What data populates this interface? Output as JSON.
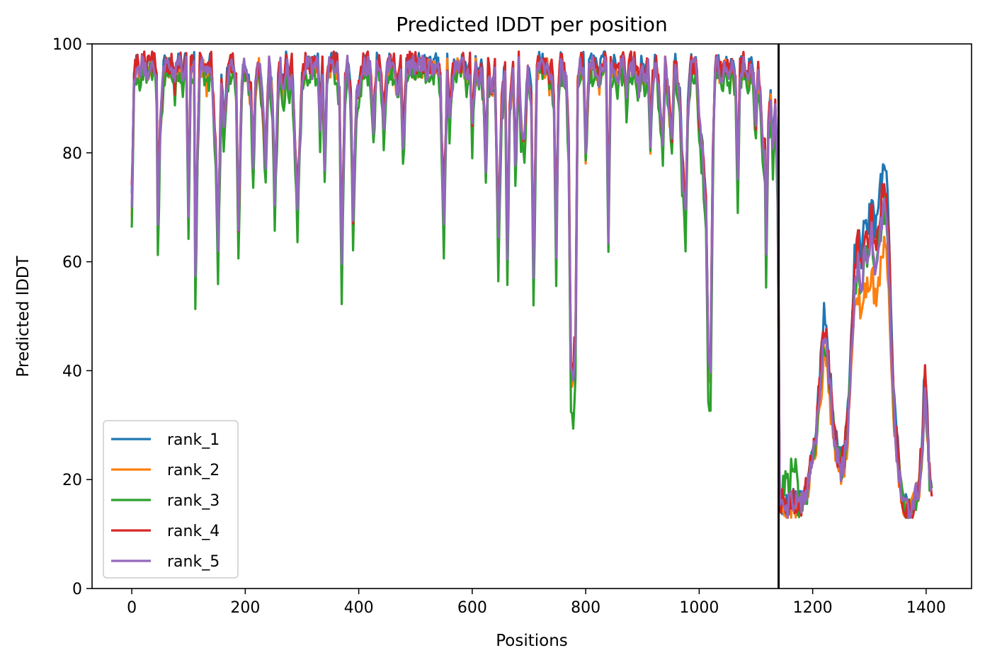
{
  "chart_data": {
    "type": "line",
    "title": "Predicted lDDT per position",
    "xlabel": "Positions",
    "ylabel": "Predicted lDDT",
    "xlim": [
      -70,
      1480
    ],
    "ylim": [
      0,
      100
    ],
    "xticks": [
      0,
      200,
      400,
      600,
      800,
      1000,
      1200,
      1400
    ],
    "yticks": [
      0,
      20,
      40,
      60,
      80,
      100
    ],
    "vline_x": 1140,
    "grid": false,
    "legend_position": "lower-left",
    "seed_points": [
      [
        0,
        71
      ],
      [
        4,
        93
      ],
      [
        8,
        97
      ],
      [
        14,
        94
      ],
      [
        20,
        97
      ],
      [
        28,
        95
      ],
      [
        34,
        98
      ],
      [
        40,
        96
      ],
      [
        44,
        92
      ],
      [
        46,
        65
      ],
      [
        50,
        85
      ],
      [
        56,
        95
      ],
      [
        62,
        97
      ],
      [
        70,
        97
      ],
      [
        76,
        92
      ],
      [
        80,
        97
      ],
      [
        86,
        97
      ],
      [
        90,
        93
      ],
      [
        96,
        97
      ],
      [
        100,
        70
      ],
      [
        104,
        95
      ],
      [
        110,
        96
      ],
      [
        112,
        58
      ],
      [
        116,
        80
      ],
      [
        120,
        97
      ],
      [
        126,
        96
      ],
      [
        132,
        93
      ],
      [
        140,
        97
      ],
      [
        148,
        80
      ],
      [
        152,
        63
      ],
      [
        158,
        93
      ],
      [
        162,
        84
      ],
      [
        168,
        93
      ],
      [
        174,
        97
      ],
      [
        180,
        97
      ],
      [
        184,
        92
      ],
      [
        188,
        65
      ],
      [
        194,
        93
      ],
      [
        200,
        97
      ],
      [
        206,
        92
      ],
      [
        210,
        90
      ],
      [
        214,
        78
      ],
      [
        218,
        92
      ],
      [
        224,
        97
      ],
      [
        230,
        90
      ],
      [
        236,
        78
      ],
      [
        242,
        96
      ],
      [
        248,
        90
      ],
      [
        252,
        72
      ],
      [
        258,
        92
      ],
      [
        262,
        96
      ],
      [
        268,
        90
      ],
      [
        272,
        97
      ],
      [
        278,
        92
      ],
      [
        282,
        96
      ],
      [
        286,
        86
      ],
      [
        292,
        70
      ],
      [
        300,
        93
      ],
      [
        306,
        96
      ],
      [
        312,
        97
      ],
      [
        318,
        95
      ],
      [
        322,
        98
      ],
      [
        328,
        97
      ],
      [
        332,
        85
      ],
      [
        336,
        95
      ],
      [
        340,
        78
      ],
      [
        344,
        93
      ],
      [
        350,
        97
      ],
      [
        356,
        97
      ],
      [
        362,
        96
      ],
      [
        366,
        90
      ],
      [
        370,
        60
      ],
      [
        376,
        92
      ],
      [
        380,
        97
      ],
      [
        386,
        90
      ],
      [
        390,
        67
      ],
      [
        396,
        90
      ],
      [
        402,
        93
      ],
      [
        408,
        96
      ],
      [
        414,
        97
      ],
      [
        420,
        95
      ],
      [
        426,
        85
      ],
      [
        432,
        97
      ],
      [
        438,
        97
      ],
      [
        444,
        85
      ],
      [
        450,
        95
      ],
      [
        456,
        97
      ],
      [
        462,
        96
      ],
      [
        468,
        92
      ],
      [
        474,
        96
      ],
      [
        478,
        80
      ],
      [
        484,
        95
      ],
      [
        490,
        97
      ],
      [
        496,
        96
      ],
      [
        502,
        98
      ],
      [
        508,
        97
      ],
      [
        514,
        96
      ],
      [
        520,
        95
      ],
      [
        526,
        97
      ],
      [
        532,
        96
      ],
      [
        538,
        96
      ],
      [
        544,
        93
      ],
      [
        550,
        66
      ],
      [
        556,
        96
      ],
      [
        560,
        85
      ],
      [
        566,
        95
      ],
      [
        572,
        97
      ],
      [
        578,
        96
      ],
      [
        584,
        97
      ],
      [
        590,
        93
      ],
      [
        596,
        96
      ],
      [
        600,
        84
      ],
      [
        606,
        96
      ],
      [
        612,
        93
      ],
      [
        616,
        96
      ],
      [
        620,
        90
      ],
      [
        624,
        78
      ],
      [
        628,
        95
      ],
      [
        634,
        91
      ],
      [
        640,
        95
      ],
      [
        646,
        64
      ],
      [
        652,
        88
      ],
      [
        658,
        96
      ],
      [
        662,
        60
      ],
      [
        666,
        88
      ],
      [
        672,
        95
      ],
      [
        676,
        78
      ],
      [
        682,
        96
      ],
      [
        686,
        85
      ],
      [
        692,
        82
      ],
      [
        698,
        95
      ],
      [
        704,
        90
      ],
      [
        708,
        57
      ],
      [
        714,
        95
      ],
      [
        720,
        97
      ],
      [
        726,
        98
      ],
      [
        732,
        97
      ],
      [
        736,
        93
      ],
      [
        740,
        96
      ],
      [
        744,
        90
      ],
      [
        748,
        62
      ],
      [
        752,
        90
      ],
      [
        756,
        97
      ],
      [
        762,
        94
      ],
      [
        766,
        93
      ],
      [
        770,
        80
      ],
      [
        774,
        39
      ],
      [
        778,
        38
      ],
      [
        782,
        45
      ],
      [
        786,
        93
      ],
      [
        790,
        98
      ],
      [
        796,
        97
      ],
      [
        800,
        80
      ],
      [
        806,
        95
      ],
      [
        812,
        97
      ],
      [
        818,
        97
      ],
      [
        824,
        93
      ],
      [
        830,
        98
      ],
      [
        836,
        96
      ],
      [
        840,
        65
      ],
      [
        844,
        95
      ],
      [
        850,
        97
      ],
      [
        856,
        93
      ],
      [
        862,
        96
      ],
      [
        868,
        96
      ],
      [
        872,
        90
      ],
      [
        876,
        96
      ],
      [
        882,
        97
      ],
      [
        888,
        96
      ],
      [
        894,
        92
      ],
      [
        898,
        96
      ],
      [
        904,
        93
      ],
      [
        910,
        96
      ],
      [
        914,
        82
      ],
      [
        918,
        93
      ],
      [
        924,
        97
      ],
      [
        930,
        90
      ],
      [
        936,
        82
      ],
      [
        940,
        96
      ],
      [
        946,
        90
      ],
      [
        952,
        82
      ],
      [
        956,
        97
      ],
      [
        962,
        93
      ],
      [
        966,
        90
      ],
      [
        970,
        78
      ],
      [
        976,
        68
      ],
      [
        980,
        88
      ],
      [
        986,
        97
      ],
      [
        992,
        97
      ],
      [
        996,
        93
      ],
      [
        1000,
        85
      ],
      [
        1006,
        80
      ],
      [
        1012,
        70
      ],
      [
        1016,
        42
      ],
      [
        1020,
        40
      ],
      [
        1024,
        78
      ],
      [
        1028,
        97
      ],
      [
        1034,
        96
      ],
      [
        1040,
        93
      ],
      [
        1046,
        96
      ],
      [
        1052,
        94
      ],
      [
        1058,
        96
      ],
      [
        1064,
        92
      ],
      [
        1068,
        75
      ],
      [
        1072,
        95
      ],
      [
        1078,
        97
      ],
      [
        1084,
        93
      ],
      [
        1090,
        96
      ],
      [
        1096,
        93
      ],
      [
        1100,
        85
      ],
      [
        1104,
        94
      ],
      [
        1108,
        90
      ],
      [
        1112,
        82
      ],
      [
        1116,
        80
      ],
      [
        1118,
        62
      ],
      [
        1122,
        85
      ],
      [
        1126,
        90
      ],
      [
        1130,
        80
      ],
      [
        1134,
        88
      ],
      [
        1138,
        76
      ],
      [
        1142,
        16
      ],
      [
        1150,
        15
      ],
      [
        1158,
        15
      ],
      [
        1166,
        16
      ],
      [
        1174,
        15
      ],
      [
        1182,
        16
      ],
      [
        1190,
        18
      ],
      [
        1196,
        22
      ],
      [
        1202,
        25
      ],
      [
        1208,
        30
      ],
      [
        1214,
        38
      ],
      [
        1220,
        46
      ],
      [
        1226,
        42
      ],
      [
        1232,
        35
      ],
      [
        1238,
        28
      ],
      [
        1244,
        24
      ],
      [
        1250,
        22
      ],
      [
        1256,
        24
      ],
      [
        1262,
        30
      ],
      [
        1268,
        42
      ],
      [
        1274,
        55
      ],
      [
        1280,
        60
      ],
      [
        1286,
        55
      ],
      [
        1292,
        62
      ],
      [
        1298,
        60
      ],
      [
        1304,
        65
      ],
      [
        1310,
        58
      ],
      [
        1316,
        62
      ],
      [
        1322,
        68
      ],
      [
        1328,
        70
      ],
      [
        1334,
        60
      ],
      [
        1340,
        40
      ],
      [
        1346,
        28
      ],
      [
        1352,
        22
      ],
      [
        1358,
        17
      ],
      [
        1364,
        15
      ],
      [
        1370,
        14
      ],
      [
        1376,
        15
      ],
      [
        1382,
        17
      ],
      [
        1388,
        20
      ],
      [
        1394,
        28
      ],
      [
        1398,
        38
      ],
      [
        1402,
        30
      ],
      [
        1406,
        20
      ],
      [
        1410,
        17
      ]
    ],
    "series": [
      {
        "name": "rank_1",
        "color": "#1f77b4",
        "offset": 0.8,
        "jitter": 1.8,
        "split_gain": 1.15,
        "dip_gain": 1.0
      },
      {
        "name": "rank_2",
        "color": "#ff7f0e",
        "offset": -0.6,
        "jitter": 2.0,
        "split_gain": 0.88,
        "dip_gain": 1.02
      },
      {
        "name": "rank_3",
        "color": "#2ca02c",
        "offset": -1.6,
        "jitter": 2.2,
        "split_gain": 1.0,
        "dip_gain": 1.12
      },
      {
        "name": "rank_4",
        "color": "#d62728",
        "offset": 0.6,
        "jitter": 2.1,
        "split_gain": 1.08,
        "dip_gain": 0.96
      },
      {
        "name": "rank_5",
        "color": "#9467bd",
        "offset": 0.0,
        "jitter": 1.9,
        "split_gain": 1.0,
        "dip_gain": 1.0
      }
    ]
  }
}
